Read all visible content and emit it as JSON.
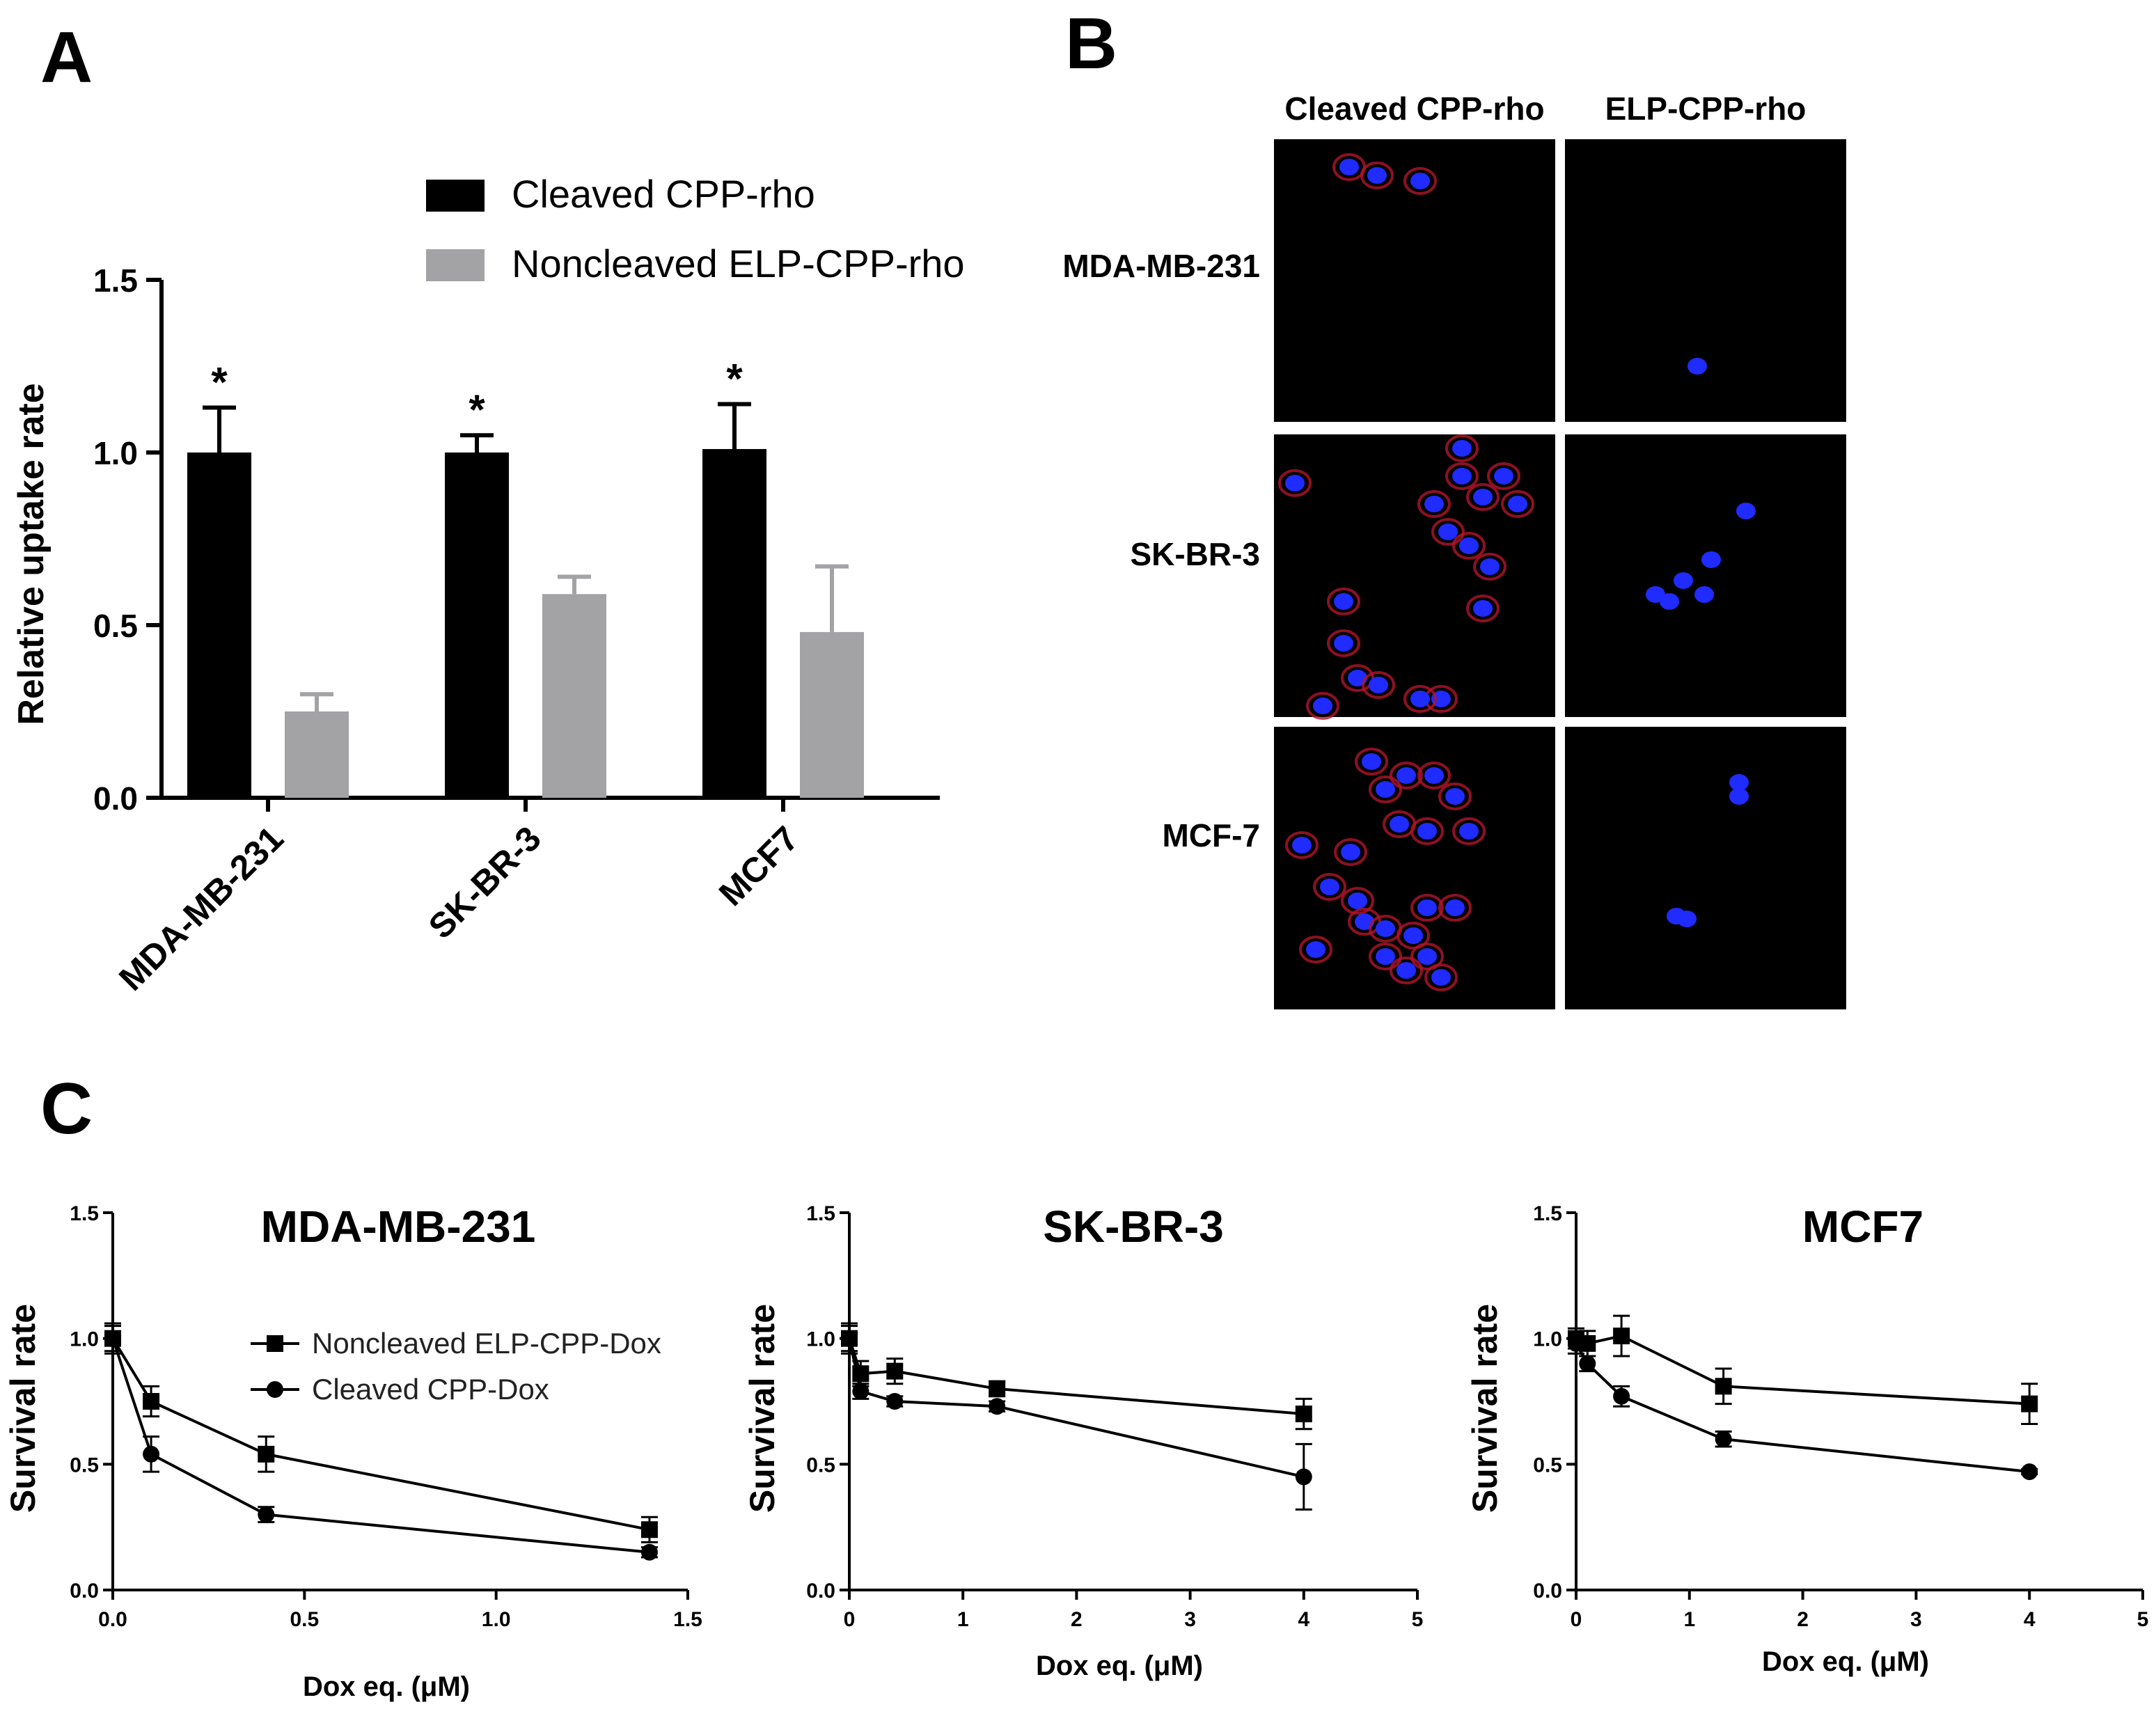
{
  "panels": {
    "a": "A",
    "b": "B",
    "c": "C"
  },
  "chart_data": [
    {
      "type": "bar",
      "panel": "A",
      "categories": [
        "MDA-MB-231",
        "SK-BR-3",
        "MCF7"
      ],
      "series": [
        {
          "name": "Cleaved CPP-rho",
          "color": "#000000",
          "values": [
            1.0,
            1.0,
            1.01
          ],
          "errors": [
            0.13,
            0.05,
            0.13
          ]
        },
        {
          "name": "Noncleaved ELP-CPP-rho",
          "color": "#a3a3a6",
          "values": [
            0.25,
            0.59,
            0.48
          ],
          "errors": [
            0.05,
            0.05,
            0.19
          ]
        }
      ],
      "significance": [
        "*",
        "*",
        "*"
      ],
      "ylabel": "Relative uptake rate",
      "ylim": [
        0,
        1.5
      ],
      "yticks": [
        "0.0",
        "0.5",
        "1.0",
        "1.5"
      ],
      "legend": "top"
    },
    {
      "type": "line",
      "panel": "C",
      "title": "MDA-MB-231",
      "xlabel": "Dox eq.  (μM)",
      "ylabel": "Survival rate",
      "xlim": [
        0,
        1.5
      ],
      "ylim": [
        0,
        1.5
      ],
      "xticks": [
        "0.0",
        "0.5",
        "1.0",
        "1.5"
      ],
      "yticks": [
        "0.0",
        "0.5",
        "1.0",
        "1.5"
      ],
      "series": [
        {
          "name": "Noncleaved ELP-CPP-Dox",
          "marker": "square",
          "x": [
            0,
            0.1,
            0.4,
            1.4
          ],
          "y": [
            1.0,
            0.75,
            0.54,
            0.24
          ],
          "err": [
            0.06,
            0.06,
            0.07,
            0.05
          ]
        },
        {
          "name": "Cleaved CPP-Dox",
          "marker": "circle",
          "x": [
            0,
            0.1,
            0.4,
            1.4
          ],
          "y": [
            1.0,
            0.54,
            0.3,
            0.15
          ],
          "err": [
            0.05,
            0.07,
            0.03,
            0.02
          ]
        }
      ]
    },
    {
      "type": "line",
      "panel": "C",
      "title": "SK-BR-3",
      "xlabel": "Dox eq.   (μM)",
      "ylabel": "Survival rate",
      "xlim": [
        0,
        5
      ],
      "ylim": [
        0,
        1.5
      ],
      "xticks": [
        "0",
        "1",
        "2",
        "3",
        "4",
        "5"
      ],
      "yticks": [
        "0.0",
        "0.5",
        "1.0",
        "1.5"
      ],
      "series": [
        {
          "name": "Noncleaved ELP-CPP-Dox",
          "marker": "square",
          "x": [
            0,
            0.1,
            0.4,
            1.3,
            4
          ],
          "y": [
            1.0,
            0.86,
            0.87,
            0.8,
            0.7
          ],
          "err": [
            0.06,
            0.05,
            0.05,
            0.03,
            0.06
          ]
        },
        {
          "name": "Cleaved CPP-Dox",
          "marker": "circle",
          "x": [
            0,
            0.1,
            0.4,
            1.3,
            4
          ],
          "y": [
            1.0,
            0.79,
            0.75,
            0.73,
            0.45
          ],
          "err": [
            0.05,
            0.03,
            0.02,
            0.02,
            0.13
          ]
        }
      ]
    },
    {
      "type": "line",
      "panel": "C",
      "title": "MCF7",
      "xlabel": "Dox eq.   (μM)",
      "ylabel": "Survival rate",
      "xlim": [
        0,
        5
      ],
      "ylim": [
        0,
        1.5
      ],
      "xticks": [
        "0",
        "1",
        "2",
        "3",
        "4",
        "5"
      ],
      "yticks": [
        "0.0",
        "0.5",
        "1.0",
        "1.5"
      ],
      "series": [
        {
          "name": "Noncleaved ELP-CPP-Dox",
          "marker": "square",
          "x": [
            0,
            0.1,
            0.4,
            1.3,
            4
          ],
          "y": [
            1.0,
            0.98,
            1.01,
            0.81,
            0.74
          ],
          "err": [
            0.04,
            0.05,
            0.08,
            0.07,
            0.08
          ]
        },
        {
          "name": "Cleaved CPP-Dox",
          "marker": "circle",
          "x": [
            0,
            0.1,
            0.4,
            1.3,
            4
          ],
          "y": [
            0.98,
            0.9,
            0.77,
            0.6,
            0.47
          ],
          "err": [
            0.04,
            0.03,
            0.04,
            0.03,
            0.01
          ]
        }
      ]
    }
  ],
  "microscopy": {
    "columns": [
      "Cleaved CPP-rho",
      "ELP-CPP-rho"
    ],
    "rows": [
      "MDA-MB-231",
      "SK-BR-3",
      "MCF-7"
    ],
    "background": "#000000",
    "nucleus_color": "#1f2bff",
    "membrane_color": "#b0152a"
  }
}
